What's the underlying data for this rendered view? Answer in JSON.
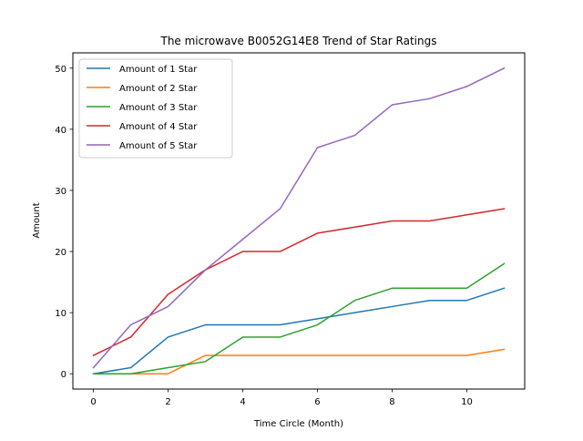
{
  "chart_data": {
    "type": "line",
    "title": "The microwave B0052G14E8 Trend of Star Ratings",
    "xlabel": "Time Circle (Month)",
    "ylabel": "Amount",
    "x": [
      0,
      1,
      2,
      3,
      4,
      5,
      6,
      7,
      8,
      9,
      10,
      11
    ],
    "xlim": [
      -0.55,
      11.55
    ],
    "ylim": [
      -2.5,
      52.5
    ],
    "xticks": [
      0,
      2,
      4,
      6,
      8,
      10
    ],
    "yticks": [
      0,
      10,
      20,
      30,
      40,
      50
    ],
    "grid": false,
    "legend_position": "top-left",
    "series": [
      {
        "name": "Amount of 1 Star",
        "color": "#1f77b4",
        "values": [
          0,
          1,
          6,
          8,
          8,
          8,
          9,
          10,
          11,
          12,
          12,
          14
        ]
      },
      {
        "name": "Amount of 2 Star",
        "color": "#ff7f0e",
        "values": [
          0,
          0,
          0,
          3,
          3,
          3,
          3,
          3,
          3,
          3,
          3,
          4
        ]
      },
      {
        "name": "Amount of 3 Star",
        "color": "#2ca02c",
        "values": [
          0,
          0,
          1,
          2,
          6,
          6,
          8,
          12,
          14,
          14,
          14,
          18
        ]
      },
      {
        "name": "Amount of 4 Star",
        "color": "#d62728",
        "values": [
          3,
          6,
          13,
          17,
          20,
          20,
          23,
          24,
          25,
          25,
          26,
          27
        ]
      },
      {
        "name": "Amount of 5 Star",
        "color": "#9467bd",
        "values": [
          1,
          8,
          11,
          17,
          22,
          27,
          37,
          39,
          44,
          45,
          47,
          50
        ]
      }
    ]
  }
}
